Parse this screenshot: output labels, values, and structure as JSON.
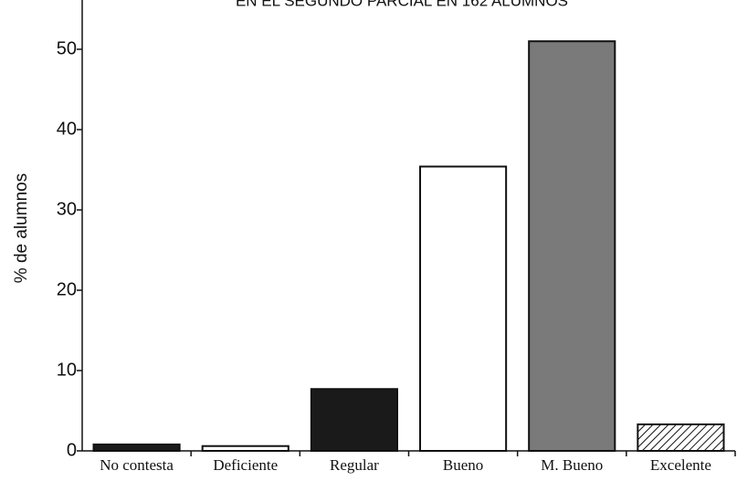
{
  "chart_data": {
    "type": "bar",
    "title": "EN EL SEGUNDO PARCIAL EN 162 ALUMNOS",
    "y_label": "% de alumnos",
    "categories": [
      "No contesta",
      "Deficiente",
      "Regular",
      "Bueno",
      "M. Bueno",
      "Excelente"
    ],
    "values": [
      0.8,
      0.6,
      7.7,
      35.4,
      51.0,
      3.3
    ],
    "colors": [
      "#1a1a1a",
      "#ffffff",
      "#1a1a1a",
      "#ffffff",
      "#7a7a7a",
      "hatch"
    ],
    "ylim": [
      0,
      55
    ],
    "yticks": [
      0,
      10,
      20,
      30,
      40,
      50
    ],
    "grid": false
  }
}
